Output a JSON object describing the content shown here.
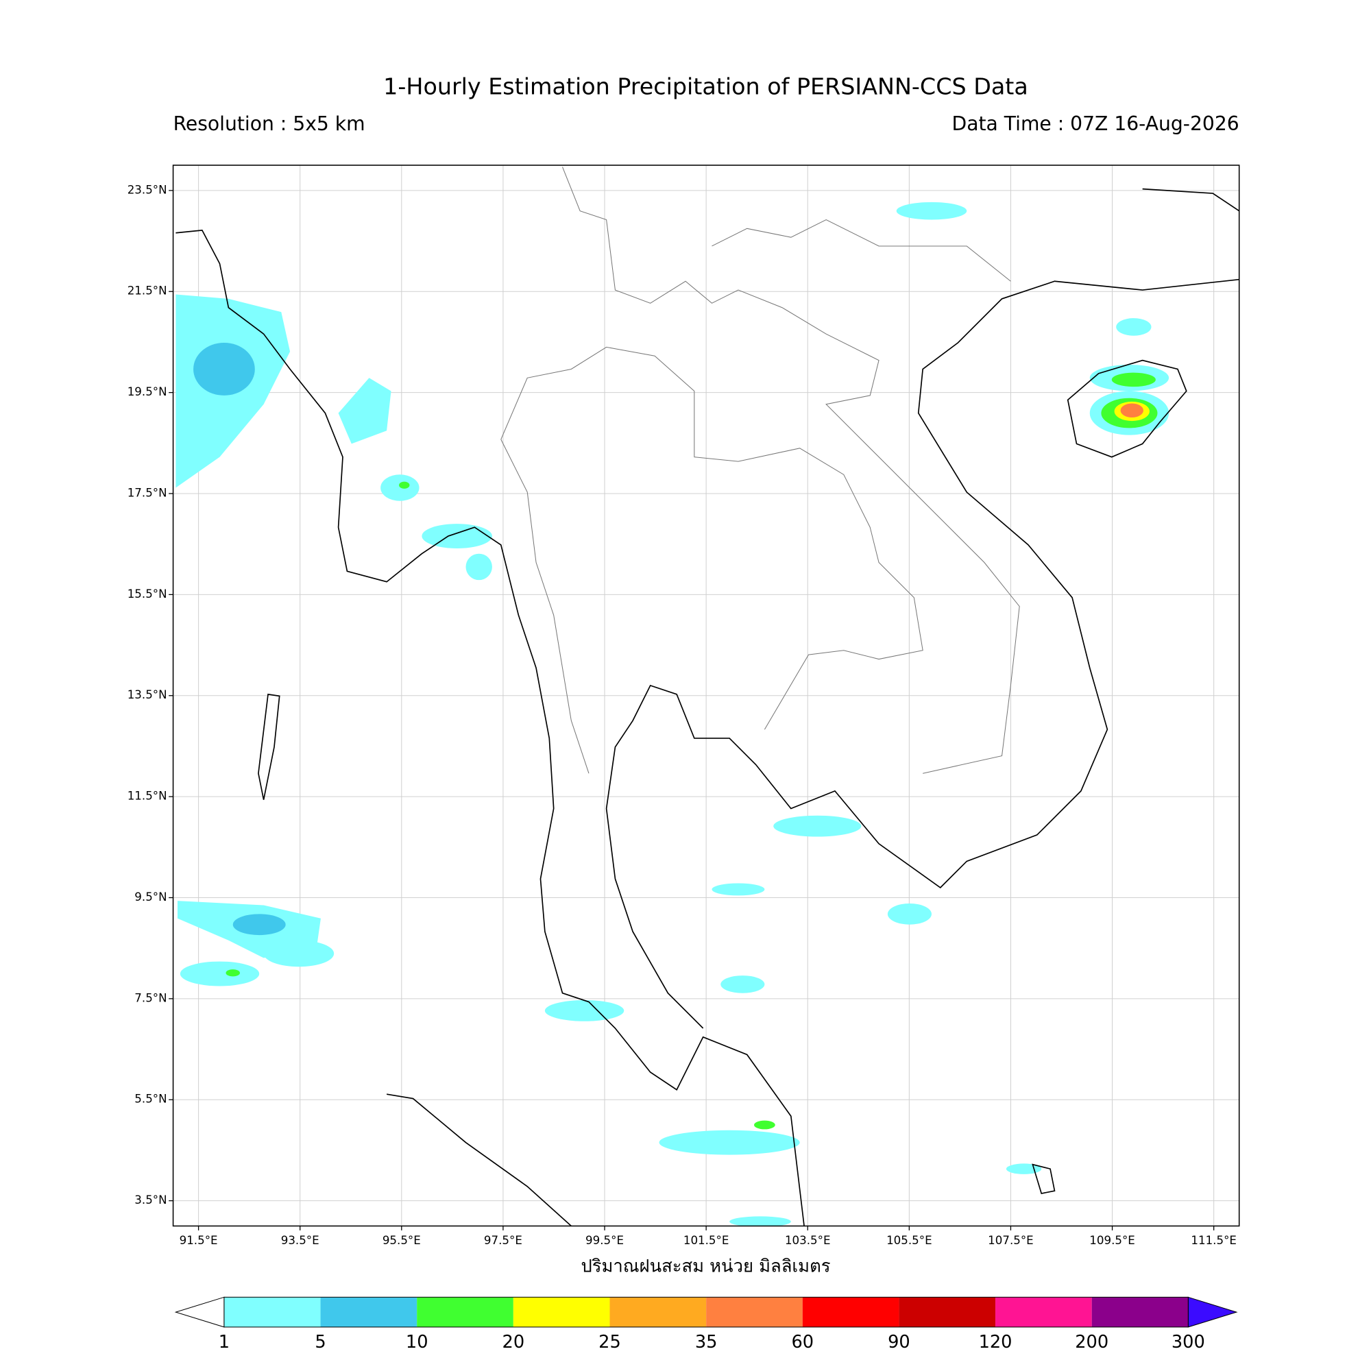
{
  "title": "1-Hourly Estimation Precipitation of PERSIANN-CCS Data",
  "resolution": "Resolution : 5x5 km",
  "data_time": "Data Time : 07Z 16-Aug-2026",
  "map": {
    "lonlim": [
      91,
      112
    ],
    "latlim": [
      3,
      24
    ],
    "lon_ticks": [
      {
        "value": 91.5,
        "label": "91.5°E"
      },
      {
        "value": 93.5,
        "label": "93.5°E"
      },
      {
        "value": 95.5,
        "label": "95.5°E"
      },
      {
        "value": 97.5,
        "label": "97.5°E"
      },
      {
        "value": 99.5,
        "label": "99.5°E"
      },
      {
        "value": 101.5,
        "label": "101.5°E"
      },
      {
        "value": 103.5,
        "label": "103.5°E"
      },
      {
        "value": 105.5,
        "label": "105.5°E"
      },
      {
        "value": 107.5,
        "label": "107.5°E"
      },
      {
        "value": 109.5,
        "label": "109.5°E"
      },
      {
        "value": 111.5,
        "label": "111.5°E"
      }
    ],
    "lat_ticks": [
      {
        "value": 3.5,
        "label": "3.5°N"
      },
      {
        "value": 5.5,
        "label": "5.5°N"
      },
      {
        "value": 7.5,
        "label": "7.5°N"
      },
      {
        "value": 9.5,
        "label": "9.5°N"
      },
      {
        "value": 11.5,
        "label": "11.5°N"
      },
      {
        "value": 13.5,
        "label": "13.5°N"
      },
      {
        "value": 15.5,
        "label": "15.5°N"
      },
      {
        "value": 17.5,
        "label": "17.5°N"
      },
      {
        "value": 19.5,
        "label": "19.5°N"
      },
      {
        "value": 21.5,
        "label": "21.5°N"
      },
      {
        "value": 23.5,
        "label": "23.5°N"
      }
    ]
  },
  "colorbar": {
    "label": "ปริมาณฝนสะสม หน่วย มิลลิเมตร",
    "levels": [
      1,
      5,
      10,
      20,
      25,
      35,
      60,
      90,
      120,
      200,
      300
    ],
    "colors": [
      "#80ffff",
      "#40c8ec",
      "#40ff30",
      "#ffff00",
      "#ffaa20",
      "#ff8040",
      "#ff0000",
      "#cc0000",
      "#ff1493",
      "#8b008b"
    ],
    "under_color": "#ffffff",
    "over_color": "#3b0bff"
  }
}
